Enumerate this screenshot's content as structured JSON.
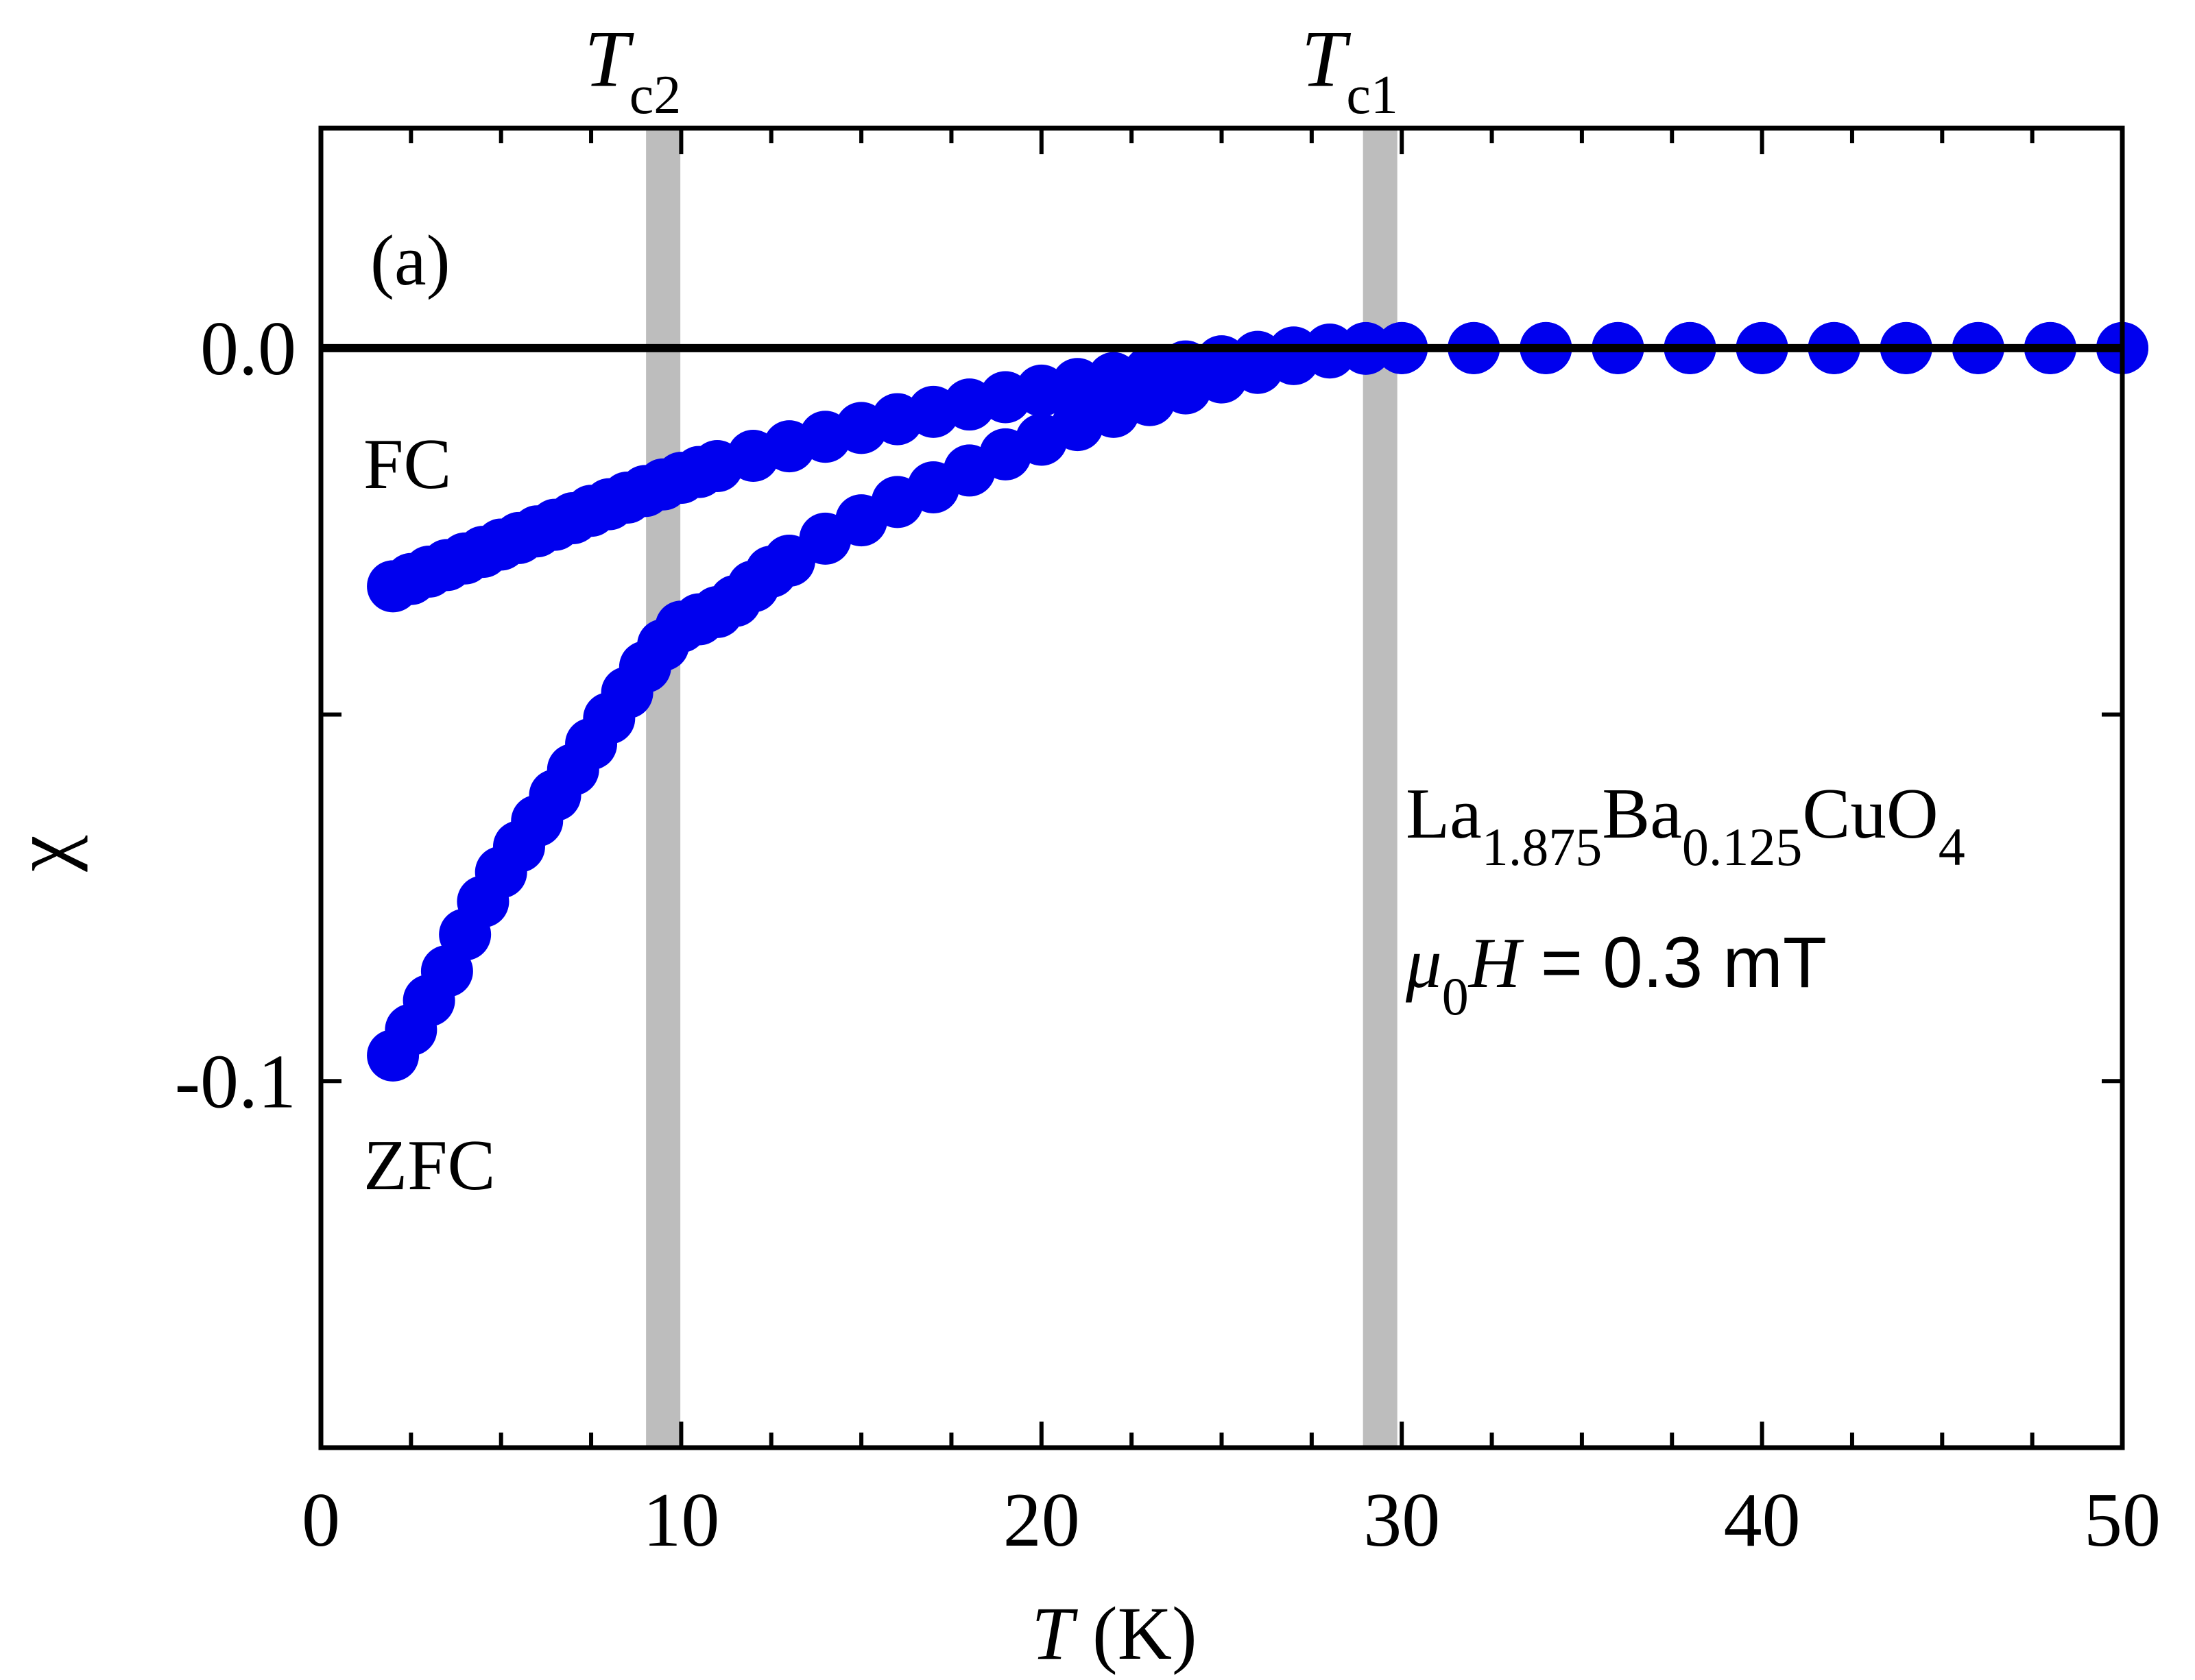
{
  "chart_data": {
    "type": "scatter",
    "panel_label": "(a)",
    "xlabel": {
      "symbol": "T",
      "unit": " (K)"
    },
    "ylabel": "χ",
    "xlim": [
      0,
      50
    ],
    "ylim": [
      -0.15,
      0.03
    ],
    "x_ticks": [
      0,
      10,
      20,
      30,
      40,
      50
    ],
    "x_tick_labels": [
      "0",
      "10",
      "20",
      "30",
      "40",
      "50"
    ],
    "y_ticks": [
      0.0,
      -0.05,
      -0.1
    ],
    "y_tick_labels": [
      "0.0",
      "",
      "-0.1"
    ],
    "grid": false,
    "reference_line": {
      "y": 0.0
    },
    "vertical_bands": [
      {
        "x": 9.5,
        "label_main": "T",
        "label_sub": "c2"
      },
      {
        "x": 29.4,
        "label_main": "T",
        "label_sub": "c1"
      }
    ],
    "series": [
      {
        "name": "FC",
        "color": "#0000ee",
        "x": [
          2.0,
          2.5,
          3.0,
          3.5,
          4.0,
          4.5,
          5.0,
          5.5,
          6.0,
          6.5,
          7.0,
          7.5,
          8.0,
          8.5,
          9.0,
          9.5,
          10.0,
          10.5,
          11.0,
          12.0,
          13.0,
          14.0,
          15.0,
          16.0,
          17.0,
          18.0,
          19.0,
          20.0,
          21.0,
          22.0,
          23.0,
          24.0,
          25.0,
          26.0,
          27.0,
          28.0,
          29.0,
          30.0,
          32.0,
          34.0,
          36.0,
          38.0,
          40.0,
          42.0,
          44.0,
          46.0,
          48.0,
          50.0
        ],
        "y": [
          -0.0325,
          -0.0315,
          -0.0305,
          -0.0296,
          -0.0287,
          -0.0278,
          -0.0268,
          -0.0259,
          -0.025,
          -0.0241,
          -0.0232,
          -0.0222,
          -0.0213,
          -0.0204,
          -0.0195,
          -0.0186,
          -0.0177,
          -0.0169,
          -0.0161,
          -0.0147,
          -0.0134,
          -0.0121,
          -0.0109,
          -0.0097,
          -0.0087,
          -0.0077,
          -0.0067,
          -0.0058,
          -0.0049,
          -0.0041,
          -0.0033,
          -0.0025,
          -0.0018,
          -0.0012,
          -0.0006,
          -0.0002,
          0.0,
          0.0,
          0.0,
          0.0,
          0.0,
          0.0,
          0.0,
          0.0,
          0.0,
          0.0,
          0.0,
          0.0
        ]
      },
      {
        "name": "ZFC",
        "color": "#0000ee",
        "x": [
          2.0,
          2.5,
          3.0,
          3.5,
          4.0,
          4.5,
          5.0,
          5.5,
          6.0,
          6.5,
          7.0,
          7.5,
          8.0,
          8.5,
          9.0,
          9.5,
          10.0,
          10.5,
          11.0,
          11.5,
          12.0,
          12.5,
          13.0,
          14.0,
          15.0,
          16.0,
          17.0,
          18.0,
          19.0,
          20.0,
          21.0,
          22.0,
          23.0,
          24.0,
          25.0,
          26.0,
          27.0,
          28.0,
          29.0,
          30.0,
          32.0,
          34.0,
          36.0,
          38.0,
          40.0,
          42.0,
          44.0,
          46.0,
          48.0,
          50.0
        ],
        "y": [
          -0.0965,
          -0.093,
          -0.089,
          -0.085,
          -0.08,
          -0.0755,
          -0.0715,
          -0.068,
          -0.0645,
          -0.061,
          -0.0575,
          -0.054,
          -0.0505,
          -0.047,
          -0.0435,
          -0.0405,
          -0.038,
          -0.037,
          -0.036,
          -0.0345,
          -0.0325,
          -0.0305,
          -0.029,
          -0.026,
          -0.0235,
          -0.021,
          -0.019,
          -0.0167,
          -0.0145,
          -0.0125,
          -0.0105,
          -0.0087,
          -0.0071,
          -0.0055,
          -0.004,
          -0.0027,
          -0.0015,
          -0.0006,
          -0.0001,
          0.0,
          0.0,
          0.0,
          0.0,
          0.0,
          0.0,
          0.0,
          0.0,
          0.0,
          0.0,
          0.0
        ]
      }
    ],
    "curve_labels": {
      "fc": "FC",
      "zfc": "ZFC"
    },
    "annotation": {
      "formula": [
        {
          "text": "La",
          "sub": false
        },
        {
          "text": "1.875",
          "sub": true
        },
        {
          "text": "Ba",
          "sub": false
        },
        {
          "text": "0.125",
          "sub": true
        },
        {
          "text": "CuO",
          "sub": false
        },
        {
          "text": "4",
          "sub": true
        }
      ],
      "field": {
        "mu": "μ",
        "mu_sub": "0",
        "H": "H",
        "rest": " = 0.3 mT"
      }
    }
  }
}
